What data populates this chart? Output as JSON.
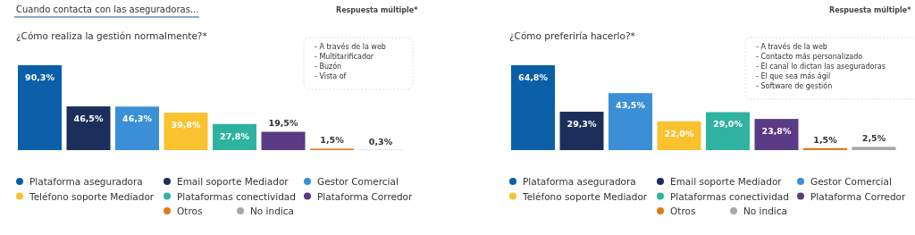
{
  "chart_data": [
    {
      "type": "bar",
      "title": "¿Cómo realiza la gestión normalmente?*",
      "subtitle": "Cuando contacta con las aseguradoras...",
      "categories": [
        null
      ],
      "legend": "bottom",
      "series": [
        {
          "name": "Plataforma aseguradora",
          "color": "#0a5fa8",
          "values": [
            90.3
          ],
          "value_labels": [
            "90,3%"
          ]
        },
        {
          "name": "Email soporte Mediador",
          "color": "#1c2f5a",
          "values": [
            46.5
          ],
          "value_labels": [
            "46,5%"
          ]
        },
        {
          "name": "Gestor Comercial",
          "color": "#3a8fd6",
          "values": [
            46.3
          ],
          "value_labels": [
            "46,3%"
          ]
        },
        {
          "name": "Teléfono soporte Mediador",
          "color": "#f9c22e",
          "values": [
            39.8
          ],
          "value_labels": [
            "39,8%"
          ]
        },
        {
          "name": "Plataformas conectividad",
          "color": "#2fb3a0",
          "values": [
            27.8
          ],
          "value_labels": [
            "27,8%"
          ]
        },
        {
          "name": "Plataforma Corredor",
          "color": "#5a3a84",
          "values": [
            19.5
          ],
          "value_labels": [
            "19,5%"
          ]
        },
        {
          "name": "Otros",
          "color": "#e07b1a",
          "values": [
            1.5
          ],
          "value_labels": [
            "1,5%"
          ]
        },
        {
          "name": "No indica",
          "color": "#a8a8a8",
          "values": [
            0.3
          ],
          "value_labels": [
            "0,3%"
          ]
        }
      ],
      "annotations": [
        "Respuesta múltiple*",
        "- A través de la web",
        "- Multitarificador",
        "- Buzón",
        "- Vista of"
      ]
    },
    {
      "type": "bar",
      "title": "¿Cómo preferiría  hacerlo?*",
      "categories": [
        null
      ],
      "legend": "bottom",
      "series": [
        {
          "name": "Plataforma aseguradora",
          "color": "#0a5fa8",
          "values": [
            64.8
          ],
          "value_labels": [
            "64,8%"
          ]
        },
        {
          "name": "Email soporte Mediador",
          "color": "#1c2f5a",
          "values": [
            29.3
          ],
          "value_labels": [
            "29,3%"
          ]
        },
        {
          "name": "Gestor Comercial",
          "color": "#3a8fd6",
          "values": [
            43.5
          ],
          "value_labels": [
            "43,5%"
          ]
        },
        {
          "name": "Teléfono soporte Mediador",
          "color": "#f9c22e",
          "values": [
            22.0
          ],
          "value_labels": [
            "22,0%"
          ]
        },
        {
          "name": "Plataformas conectividad",
          "color": "#2fb3a0",
          "values": [
            29.0
          ],
          "value_labels": [
            "29,0%"
          ]
        },
        {
          "name": "Plataforma Corredor",
          "color": "#5a3a84",
          "values": [
            23.8
          ],
          "value_labels": [
            "23,8%"
          ]
        },
        {
          "name": "Otros",
          "color": "#e07b1a",
          "values": [
            1.5
          ],
          "value_labels": [
            "1,5%"
          ]
        },
        {
          "name": "No indica",
          "color": "#a8a8a8",
          "values": [
            2.5
          ],
          "value_labels": [
            "2,5%"
          ]
        }
      ],
      "annotations": [
        "Respuesta múltiple*",
        "- A través de la web",
        "- Contacto más personalizado",
        "- El canal lo dictan las aseguradoras",
        "- El que sea más ágil",
        "- Software de gestión"
      ]
    }
  ]
}
